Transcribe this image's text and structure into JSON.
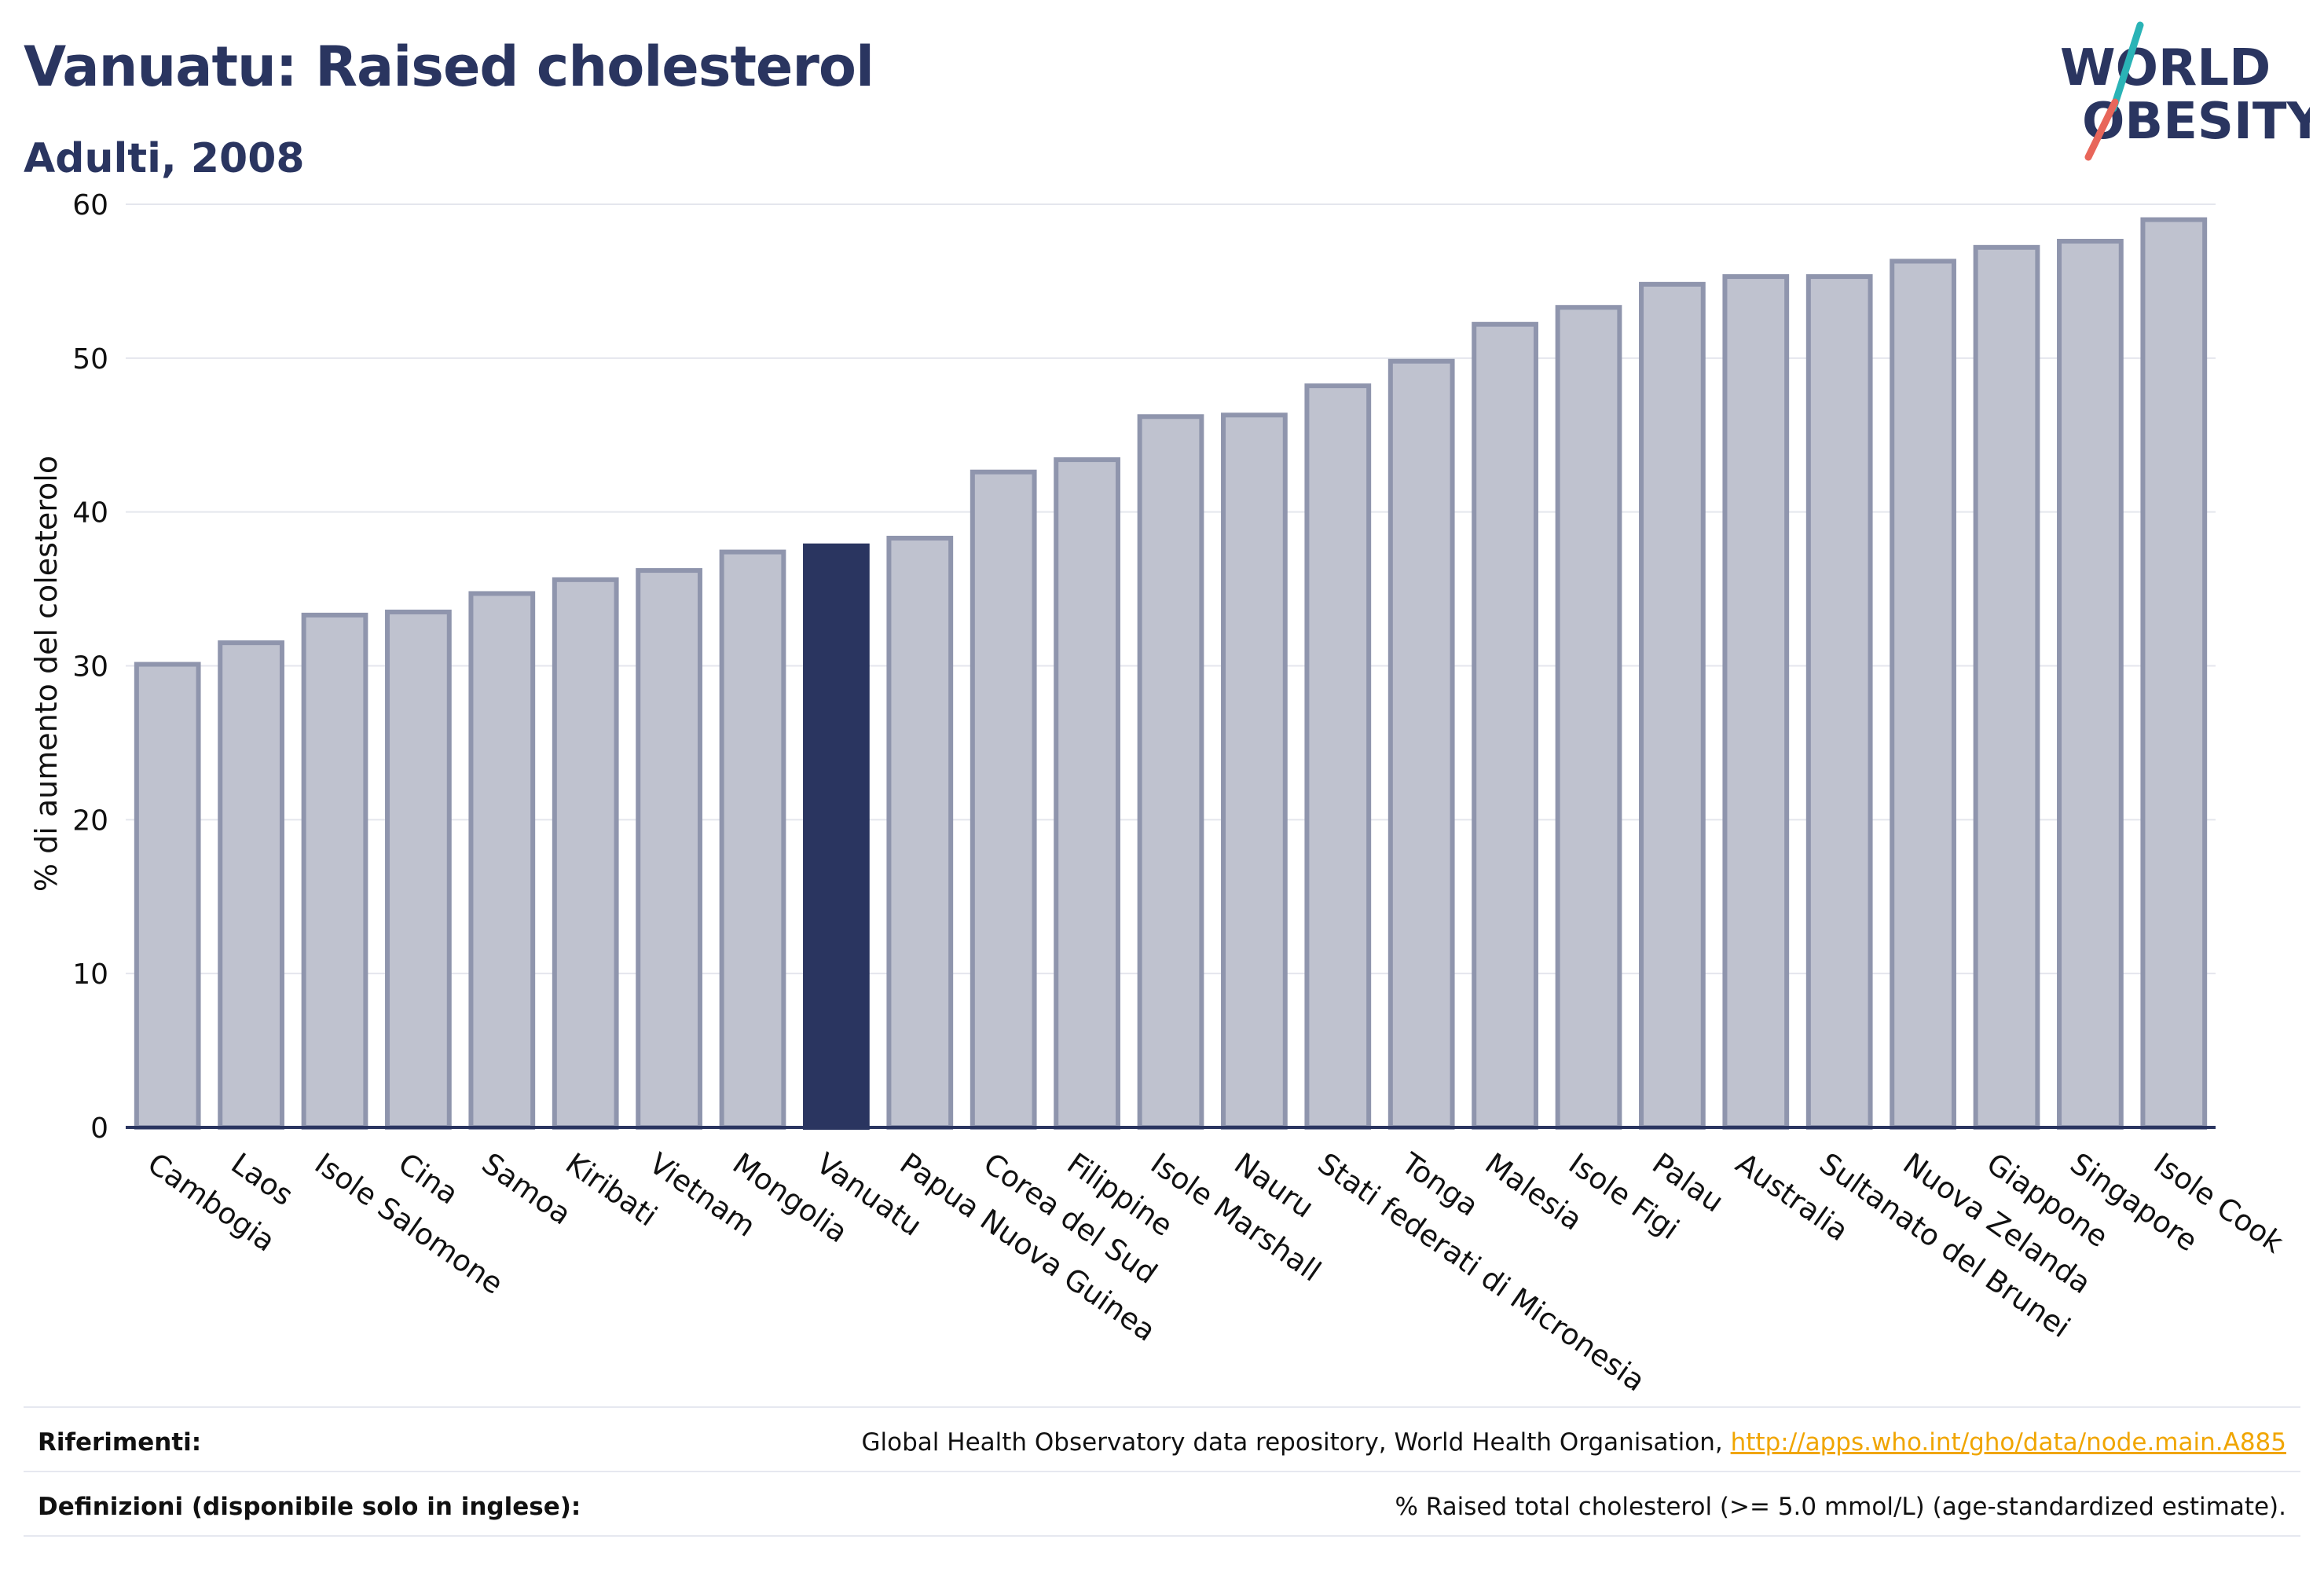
{
  "header": {
    "title": "Vanuatu: Raised cholesterol",
    "subtitle": "Adulti, 2008",
    "logo_line1": "WORLD",
    "logo_line2": "OBESITY"
  },
  "colors": {
    "title": "#2a3560",
    "bar_default_fill": "#bfc2cf",
    "bar_default_stroke": "#8f95ad",
    "bar_highlight": "#2a3560",
    "grid": "#e4e6ed",
    "axis": "#2a3560",
    "link": "#f0a500",
    "logo_teal": "#2ab3b6",
    "logo_coral": "#e8665a"
  },
  "chart_data": {
    "type": "bar",
    "title": "Vanuatu: Raised cholesterol",
    "subtitle": "Adulti, 2008",
    "xlabel": "",
    "ylabel": "% di aumento del colesterolo",
    "ylim": [
      0,
      60
    ],
    "yticks": [
      0,
      10,
      20,
      30,
      40,
      50,
      60
    ],
    "grid": true,
    "highlight": "Vanuatu",
    "categories": [
      "Cambogia",
      "Laos",
      "Isole Salomone",
      "Cina",
      "Samoa",
      "Kiribati",
      "Vietnam",
      "Mongolia",
      "Vanuatu",
      "Papua Nuova Guinea",
      "Corea del Sud",
      "Filippine",
      "Isole Marshall",
      "Nauru",
      "Stati federati di Micronesia",
      "Tonga",
      "Malesia",
      "Isole Figi",
      "Palau",
      "Australia",
      "Sultanato del Brunei",
      "Nuova Zelanda",
      "Giappone",
      "Singapore",
      "Isole Cook"
    ],
    "values": [
      30.1,
      31.5,
      33.3,
      33.5,
      34.7,
      35.6,
      36.2,
      37.4,
      37.8,
      38.3,
      42.6,
      43.4,
      46.2,
      46.3,
      48.2,
      49.8,
      52.2,
      53.3,
      54.8,
      55.3,
      55.3,
      56.3,
      57.2,
      57.6,
      59.0
    ]
  },
  "footer": {
    "references_label": "Riferimenti:",
    "references_text": "Global Health Observatory data repository, World Health Organisation, ",
    "references_link": "http://apps.who.int/gho/data/node.main.A885",
    "definitions_label": "Definizioni (disponibile solo in inglese):",
    "definitions_text": "% Raised total cholesterol (>= 5.0 mmol/L) (age-standardized estimate)."
  }
}
